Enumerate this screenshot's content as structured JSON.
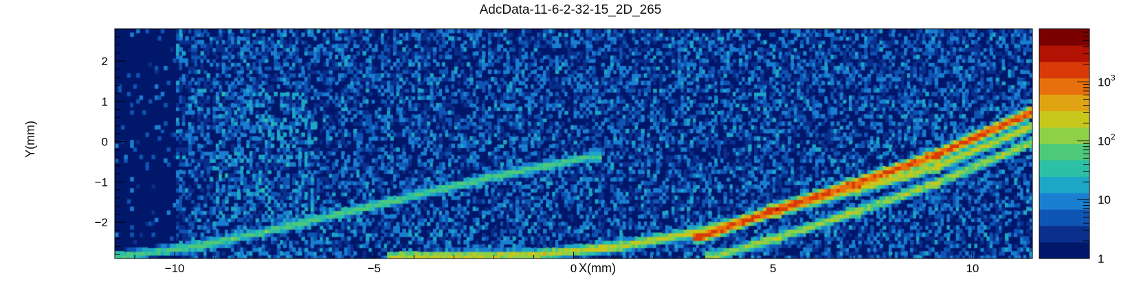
{
  "chart_data": {
    "type": "heatmap",
    "title": "AdcData-11-6-2-32-15_2D_265",
    "xlabel": "X(mm)",
    "ylabel": "Y(mm)",
    "xlim": [
      -11.5,
      11.5
    ],
    "ylim": [
      -2.9,
      2.8
    ],
    "x_ticks": [
      -10,
      -5,
      0,
      5,
      10
    ],
    "x_tick_labels": [
      "−10",
      "−5",
      "0",
      "5",
      "10"
    ],
    "y_ticks": [
      -2,
      -1,
      0,
      1,
      2
    ],
    "y_tick_labels": [
      "−2",
      "−1",
      "0",
      "1",
      "2"
    ],
    "z_scale": "log",
    "zlim": [
      1,
      8000
    ],
    "colorbar_ticks": [
      1,
      10,
      100,
      1000
    ],
    "colorbar_tick_labels": [
      {
        "base": "1",
        "exp": ""
      },
      {
        "base": "10",
        "exp": ""
      },
      {
        "base": "10",
        "exp": "2"
      },
      {
        "base": "10",
        "exp": "3"
      }
    ],
    "colormap": [
      "#00176a",
      "#0a2f8c",
      "#0f55b3",
      "#1a7fd1",
      "#1ea6c6",
      "#2cc0a6",
      "#4ec97a",
      "#8ed048",
      "#c7c71c",
      "#e0a412",
      "#e8700c",
      "#d93a08",
      "#b11204",
      "#7a0000"
    ],
    "background_color": "#00176a",
    "tracks": [
      {
        "points": [
          [
            -11.5,
            -2.85
          ],
          [
            -9.5,
            -2.6
          ],
          [
            -7.0,
            -2.05
          ],
          [
            -4.5,
            -1.45
          ],
          [
            -2.0,
            -0.85
          ],
          [
            0.5,
            -0.35
          ]
        ],
        "intensity": 60
      },
      {
        "points": [
          [
            -4.5,
            -2.85
          ],
          [
            -1.0,
            -2.8
          ],
          [
            1.0,
            -2.6
          ],
          [
            3.0,
            -2.25
          ],
          [
            5.0,
            -1.75
          ],
          [
            7.0,
            -1.2
          ],
          [
            9.0,
            -0.65
          ],
          [
            11.5,
            0.4
          ]
        ],
        "intensity": 220
      },
      {
        "points": [
          [
            3.2,
            -2.35
          ],
          [
            5.0,
            -1.7
          ],
          [
            7.0,
            -1.05
          ],
          [
            9.0,
            -0.35
          ],
          [
            11.5,
            0.75
          ]
        ],
        "intensity": 1500
      },
      {
        "points": [
          [
            3.5,
            -2.85
          ],
          [
            5.0,
            -2.4
          ],
          [
            7.0,
            -1.75
          ],
          [
            9.0,
            -1.05
          ],
          [
            11.5,
            0.0
          ]
        ],
        "intensity": 150
      }
    ],
    "mean_noise_counts": 6,
    "empty_region_x": [
      -11.5,
      -10.0
    ]
  }
}
